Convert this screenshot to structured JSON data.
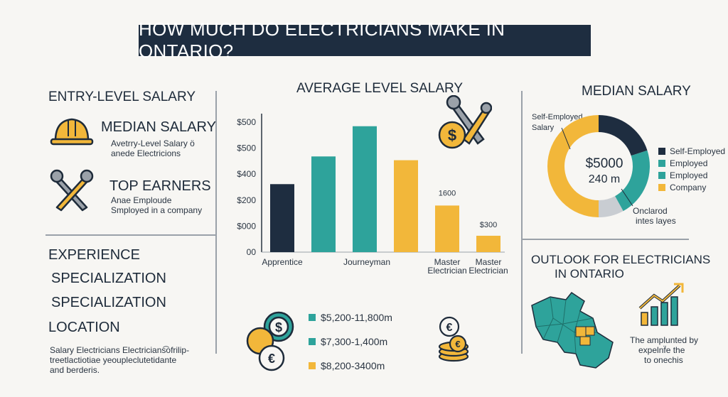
{
  "title": "HOW MUCH DO ELECTRICIANS MAKE IN ONTARIO?",
  "left": {
    "entry_heading": "ENTRY-LEVEL SALARY",
    "median_heading": "MEDIAN SALARY",
    "median_desc_1": "Avetrry-Level Salary ö",
    "median_desc_2": "anede Electricions",
    "top_heading": "TOP EARNERS",
    "top_desc_1": "Anae Emploude",
    "top_desc_2": "Smployed in a company",
    "factors": [
      "EXPERIENCE",
      "SPECIALIZATION",
      "SPECIALIZATION",
      "LOCATION"
    ],
    "footnote_1": "Salary Electricians Electricians͡ofrilip-",
    "footnote_2": "treetlactiotiae yeoupleclutetidante",
    "footnote_3": "and berderis."
  },
  "chart_data": {
    "type": "bar",
    "title": "AVERAGE LEVEL SALARY",
    "y_tick_labels": [
      "$500",
      "$500",
      "$400",
      "$200",
      "$000",
      "00"
    ],
    "ylim": [
      0,
      550
    ],
    "bars": [
      {
        "value": 270,
        "color": "#1e2d40"
      },
      {
        "value": 380,
        "color": "#2ea39b"
      },
      {
        "value": 500,
        "color": "#2ea39b"
      },
      {
        "value": 365,
        "color": "#f2b73a"
      },
      {
        "value": 185,
        "color": "#f2b73a"
      },
      {
        "value": 65,
        "color": "#f2b73a"
      }
    ],
    "category_labels": [
      "Apprentice",
      "Journeyman",
      "Master\nElectrician",
      "Master\nElectrician"
    ],
    "data_labels": [
      "1600",
      "$300"
    ]
  },
  "salary_ranges": [
    {
      "label": "$5,200-11,800m",
      "color": "#2ea39b"
    },
    {
      "label": "$7,300-1,400m",
      "color": "#2ea39b"
    },
    {
      "label": "$8,200-3400m",
      "color": "#f2b73a"
    }
  ],
  "median_donut": {
    "title": "MEDIAN SALARY",
    "callout": "Self-Employed\nSalary",
    "center_line_1": "$5000",
    "center_line_2": "240 m",
    "segments": [
      {
        "value": 20,
        "color": "#1e2d40"
      },
      {
        "value": 22,
        "color": "#2ea39b"
      },
      {
        "value": 8,
        "color": "#c9cdd2"
      },
      {
        "value": 50,
        "color": "#f2b73a"
      }
    ],
    "legend": [
      {
        "label": "Self-Employed",
        "color": "#1e2d40"
      },
      {
        "label": "Employed",
        "color": "#2ea39b"
      },
      {
        "label": "Employed",
        "color": "#2ea39b"
      },
      {
        "label": "Company",
        "color": "#f2b73a"
      }
    ],
    "note_1": "Onclarod",
    "note_2": "intes layes"
  },
  "outlook": {
    "heading_1": "OUTLOOK FOR ELECTRICIANS",
    "heading_2": "IN ONTARIO",
    "caption_1": "The amplunted by",
    "caption_2": "expelnf̈e the",
    "caption_3": "to onechis"
  },
  "colors": {
    "navy": "#1e2d40",
    "teal": "#2ea39b",
    "gold": "#f2b73a",
    "grey": "#c9cdd2"
  }
}
